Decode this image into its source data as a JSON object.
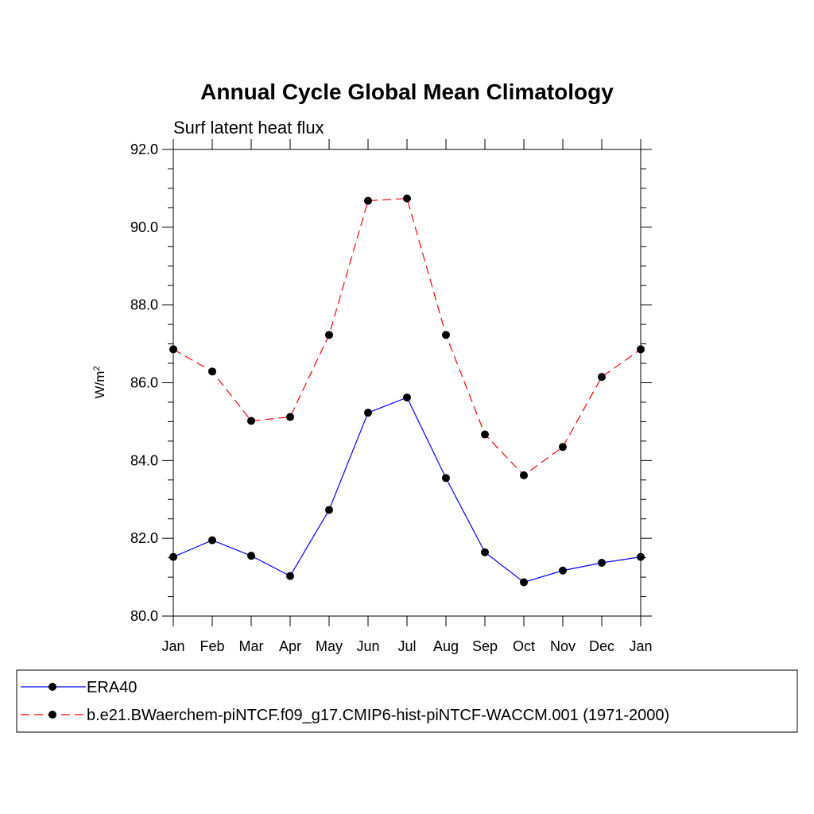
{
  "chart_data": {
    "type": "line",
    "title": "Annual Cycle Global Mean Climatology",
    "subtitle": "Surf latent heat flux",
    "xlabel": "",
    "ylabel_base": "W/m",
    "ylabel_sup": "2",
    "categories": [
      "Jan",
      "Feb",
      "Mar",
      "Apr",
      "May",
      "Jun",
      "Jul",
      "Aug",
      "Sep",
      "Oct",
      "Nov",
      "Dec",
      "Jan"
    ],
    "ylim": [
      80.0,
      92.0
    ],
    "yticks": [
      "80.0",
      "82.0",
      "84.0",
      "86.0",
      "88.0",
      "90.0",
      "92.0"
    ],
    "grid": false,
    "legend_position": "bottom",
    "series": [
      {
        "name": "ERA40",
        "color": "#0000ff",
        "dash": "solid",
        "marker": "filled-circle",
        "values": [
          81.52,
          81.95,
          81.55,
          81.03,
          82.73,
          85.23,
          85.62,
          83.55,
          81.64,
          80.87,
          81.17,
          81.37,
          81.52
        ]
      },
      {
        "name": "b.e21.BWaerchem-piNTCF.f09_g17.CMIP6-hist-piNTCF-WACCM.001 (1971-2000)",
        "color": "#ff0000",
        "dash": "dashed",
        "marker": "filled-circle",
        "values": [
          86.86,
          86.29,
          85.02,
          85.12,
          87.23,
          90.68,
          90.74,
          87.23,
          84.67,
          83.62,
          84.35,
          86.15,
          86.86
        ]
      }
    ]
  }
}
